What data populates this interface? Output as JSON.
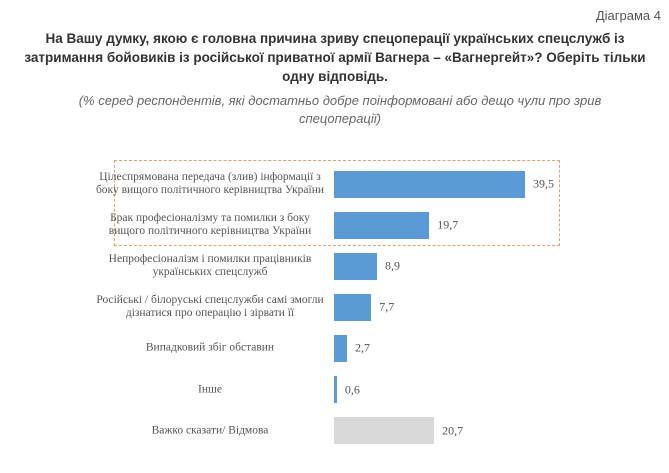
{
  "diagram_label": "Діаграма 4",
  "question": "На Вашу думку, якою є головна причина зриву спецоперації українських спецслужб із затримання бойовиків із російської приватної армії Вагнера – «Вагнергейт»? Оберіть тільки одну відповідь.",
  "subtitle": "(% серед респондентів, які достатньо добре поінформовані або дещо чули про зрив спецоперації)",
  "colors": {
    "main": "#5b9bd5",
    "other": "#d9d9d9",
    "highlight_border": "#e0a070"
  },
  "chart_data": {
    "type": "bar",
    "orientation": "horizontal",
    "categories": [
      "Цілеспрямована передача (злив) інформації з боку вищого політичного керівництва України",
      "Брак професіоналізму та помилки з боку вищого політичного керівництва України",
      "Непрофесіоналізм і помилки працівників українських спецслужб",
      "Російські / білоруські спецслужби самі змогли дізнатися про операцію і зірвати її",
      "Випадковий збіг обставин",
      "Інше",
      "Важко сказати/ Відмова"
    ],
    "values": [
      39.5,
      19.7,
      8.9,
      7.7,
      2.7,
      0.6,
      20.7
    ],
    "value_labels": [
      "39,5",
      "19,7",
      "8,9",
      "7,7",
      "2,7",
      "0,6",
      "20,7"
    ],
    "highlighted": [
      0,
      1
    ],
    "grid": false
  }
}
